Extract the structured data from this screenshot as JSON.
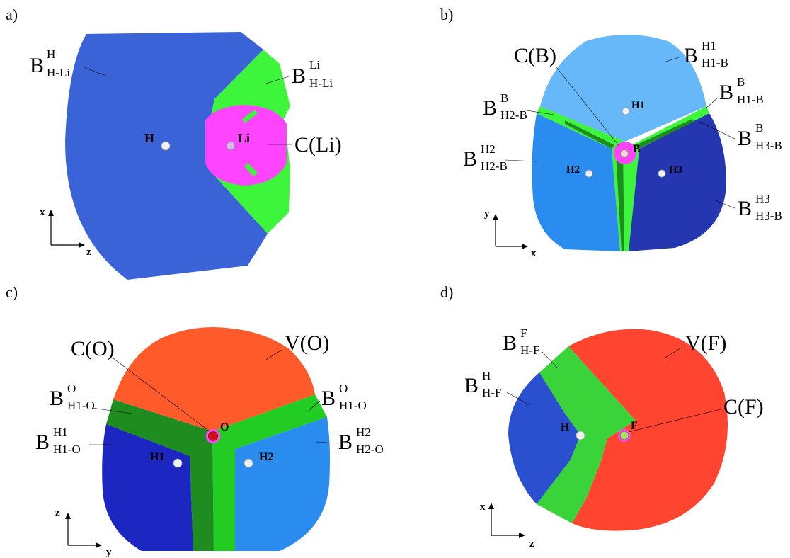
{
  "panels": {
    "a": {
      "letter": "a)",
      "atoms": {
        "h": "H",
        "li": "Li"
      },
      "basins": {
        "bh": {
          "base": "B",
          "sup": "H",
          "sub": "H-Li"
        },
        "bli": {
          "base": "B",
          "sup": "Li",
          "sub": "H-Li"
        },
        "core": "C(Li)"
      },
      "axes": {
        "vertical": "x",
        "horizontal": "z"
      }
    },
    "b": {
      "letter": "b)",
      "atoms": {
        "h1": "H1",
        "h2": "H2",
        "h3": "H3",
        "b": "B"
      },
      "basins": {
        "core": "C(B)",
        "bh1": {
          "base": "B",
          "sup": "H1",
          "sub": "H1-B"
        },
        "bb1": {
          "base": "B",
          "sup": "B",
          "sub": "H1-B"
        },
        "bb2": {
          "base": "B",
          "sup": "B",
          "sub": "H2-B"
        },
        "bb3": {
          "base": "B",
          "sup": "B",
          "sub": "H3-B"
        },
        "bh2": {
          "base": "B",
          "sup": "H2",
          "sub": "H2-B"
        },
        "bh3": {
          "base": "B",
          "sup": "H3",
          "sub": "H3-B"
        }
      },
      "axes": {
        "vertical": "y",
        "horizontal": "x"
      }
    },
    "c": {
      "letter": "c)",
      "atoms": {
        "o": "O",
        "h1": "H1",
        "h2": "H2"
      },
      "basins": {
        "core": "C(O)",
        "v": "V(O)",
        "bo1": {
          "base": "B",
          "sup": "O",
          "sub": "H1-O"
        },
        "bo2": {
          "base": "B",
          "sup": "O",
          "sub": "H1-O"
        },
        "bh1": {
          "base": "B",
          "sup": "H1",
          "sub": "H1-O"
        },
        "bh2": {
          "base": "B",
          "sup": "H2",
          "sub": "H2-O"
        }
      },
      "axes": {
        "vertical": "z",
        "horizontal": "y"
      }
    },
    "d": {
      "letter": "d)",
      "atoms": {
        "h": "H",
        "f": "F"
      },
      "basins": {
        "bf": {
          "base": "B",
          "sup": "F",
          "sub": "H-F"
        },
        "bh": {
          "base": "B",
          "sup": "H",
          "sub": "H-F"
        },
        "v": "V(F)",
        "core": "C(F)"
      },
      "axes": {
        "vertical": "x",
        "horizontal": "z"
      }
    }
  },
  "colors": {
    "royal_blue": "#3a63d8",
    "light_green": "#3df53a",
    "magenta": "#ff44ff",
    "sky_blue": "#66b8f8",
    "mid_blue": "#2b8cf0",
    "navy": "#2436b0",
    "dark_green": "#1e8c1e",
    "orange_red": "#ff5a2a",
    "deep_blue": "#1c26c0",
    "red": "#ff4530"
  }
}
